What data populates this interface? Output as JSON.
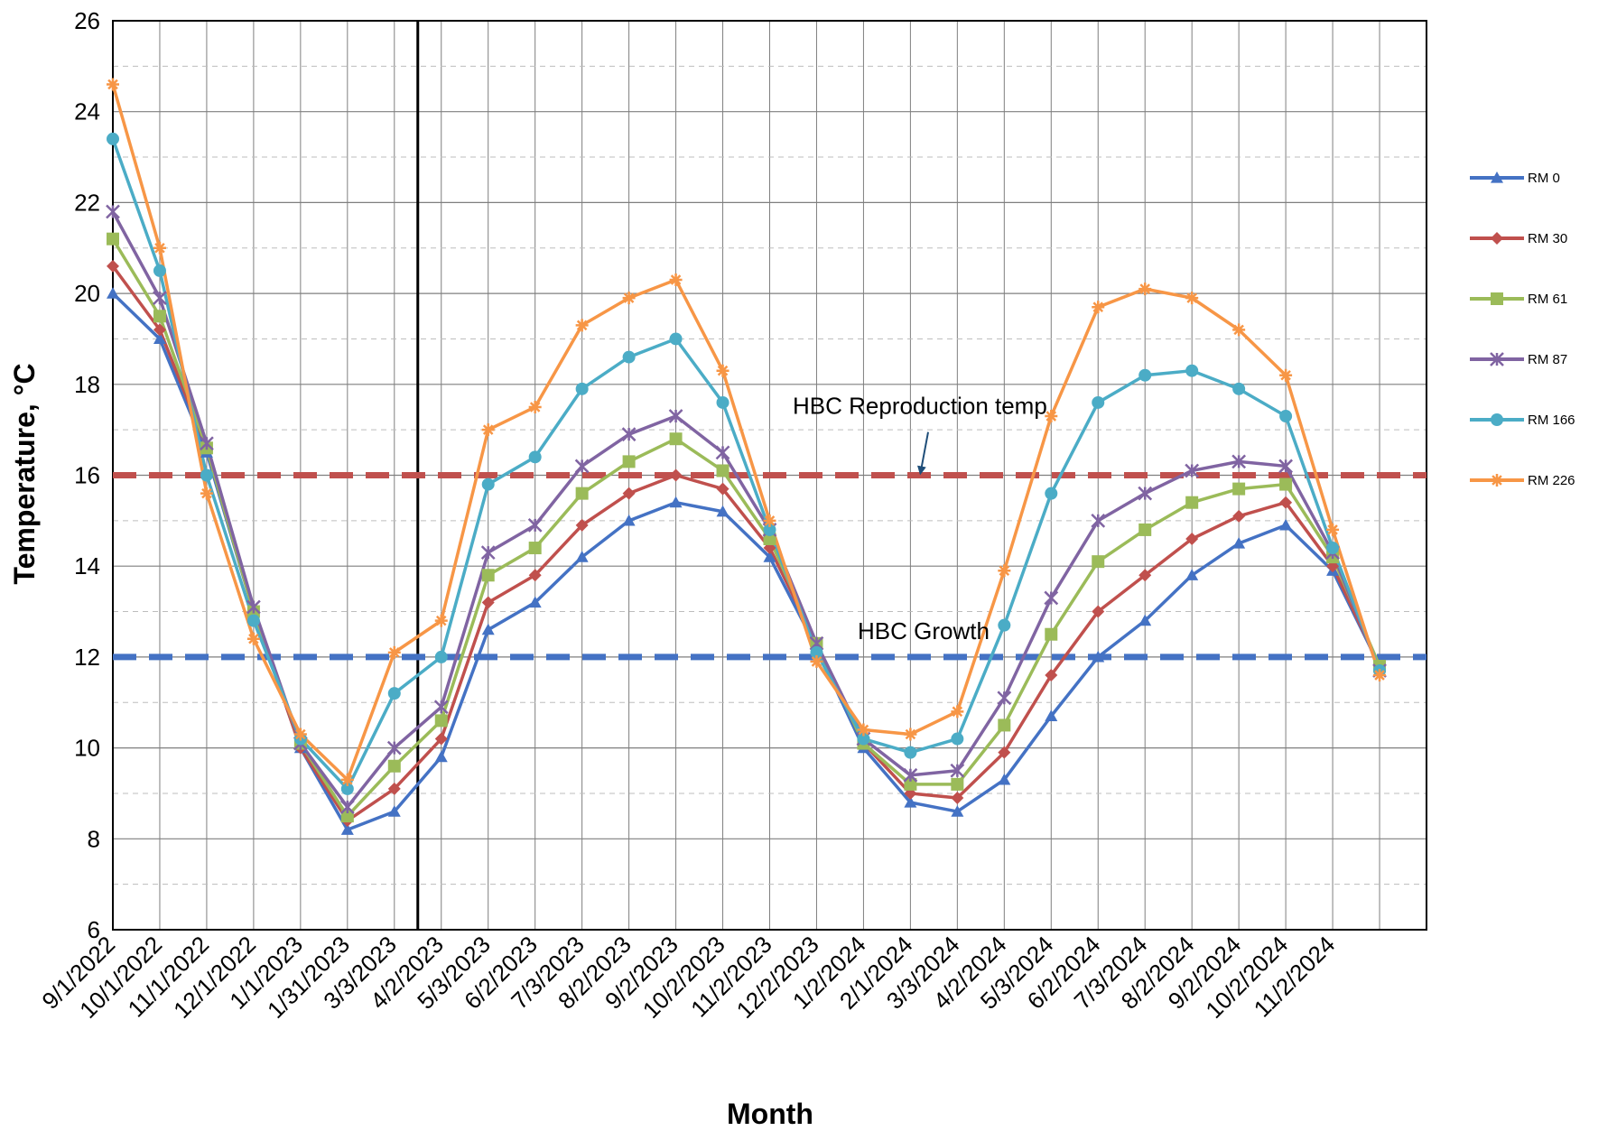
{
  "chart_data": {
    "type": "line",
    "xlabel": "Month",
    "ylabel": "Temperature, °C",
    "ylim": [
      6,
      26
    ],
    "yticks": [
      6,
      8,
      10,
      12,
      14,
      16,
      18,
      20,
      22,
      24,
      26
    ],
    "categories": [
      "9/1/2022",
      "10/1/2022",
      "11/1/2022",
      "12/1/2022",
      "1/1/2023",
      "1/31/2023",
      "3/3/2023",
      "4/2/2023",
      "5/3/2023",
      "6/2/2023",
      "7/3/2023",
      "8/2/2023",
      "9/2/2023",
      "10/2/2023",
      "11/2/2023",
      "12/2/2023",
      "1/2/2024",
      "2/1/2024",
      "3/3/2024",
      "4/2/2024",
      "5/3/2024",
      "6/2/2024",
      "7/3/2024",
      "8/2/2024",
      "9/2/2024",
      "10/2/2024",
      "11/2/2024",
      ""
    ],
    "grid": true,
    "legend_position": "right",
    "series": [
      {
        "name": "RM 0",
        "color": "#4472C4",
        "marker": "triangle",
        "values": [
          20.0,
          19.0,
          16.5,
          13.0,
          10.0,
          8.2,
          8.6,
          9.8,
          12.6,
          13.2,
          14.2,
          15.0,
          15.4,
          15.2,
          14.2,
          12.2,
          10.0,
          8.8,
          8.6,
          9.3,
          10.7,
          12.0,
          12.8,
          13.8,
          14.5,
          14.9,
          13.9,
          11.8
        ]
      },
      {
        "name": "RM 30",
        "color": "#C0504D",
        "marker": "diamond",
        "values": [
          20.6,
          19.2,
          16.6,
          13.0,
          10.0,
          8.4,
          9.1,
          10.2,
          13.2,
          13.8,
          14.9,
          15.6,
          16.0,
          15.7,
          14.4,
          12.3,
          10.1,
          9.0,
          8.9,
          9.9,
          11.6,
          13.0,
          13.8,
          14.6,
          15.1,
          15.4,
          14.0,
          11.8
        ]
      },
      {
        "name": "RM 61",
        "color": "#9BBB59",
        "marker": "square",
        "values": [
          21.2,
          19.5,
          16.6,
          13.0,
          10.1,
          8.5,
          9.6,
          10.6,
          13.8,
          14.4,
          15.6,
          16.3,
          16.8,
          16.1,
          14.6,
          12.3,
          10.1,
          9.2,
          9.2,
          10.5,
          12.5,
          14.1,
          14.8,
          15.4,
          15.7,
          15.8,
          14.2,
          11.8
        ]
      },
      {
        "name": "RM 87",
        "color": "#8064A2",
        "marker": "x",
        "values": [
          21.8,
          19.9,
          16.7,
          13.1,
          10.1,
          8.7,
          10.0,
          10.9,
          14.3,
          14.9,
          16.2,
          16.9,
          17.3,
          16.5,
          14.8,
          12.3,
          10.2,
          9.4,
          9.5,
          11.1,
          13.3,
          15.0,
          15.6,
          16.1,
          16.3,
          16.2,
          14.3,
          11.7
        ]
      },
      {
        "name": "RM 166",
        "color": "#4BACC6",
        "marker": "circle",
        "values": [
          23.4,
          20.5,
          16.0,
          12.8,
          10.2,
          9.1,
          11.2,
          12.0,
          15.8,
          16.4,
          17.9,
          18.6,
          19.0,
          17.6,
          14.8,
          12.1,
          10.2,
          9.9,
          10.2,
          12.7,
          15.6,
          17.6,
          18.2,
          18.3,
          17.9,
          17.3,
          14.4,
          11.7
        ]
      },
      {
        "name": "RM 226",
        "color": "#F79646",
        "marker": "star",
        "values": [
          24.6,
          21.0,
          15.6,
          12.4,
          10.3,
          9.3,
          12.1,
          12.8,
          17.0,
          17.5,
          19.3,
          19.9,
          20.3,
          18.3,
          15.0,
          11.9,
          10.4,
          10.3,
          10.8,
          13.9,
          17.3,
          19.7,
          20.1,
          19.9,
          19.2,
          18.2,
          14.8,
          11.6
        ]
      }
    ],
    "reference_lines": [
      {
        "value": 16,
        "color": "#C0504D",
        "style": "dashed"
      },
      {
        "value": 12,
        "color": "#4472C4",
        "style": "dashed"
      }
    ],
    "vertical_line_after_category": "3/3/2023",
    "annotations": [
      {
        "text": "HBC Reproduction temp"
      },
      {
        "text": "HBC Growth"
      }
    ]
  }
}
